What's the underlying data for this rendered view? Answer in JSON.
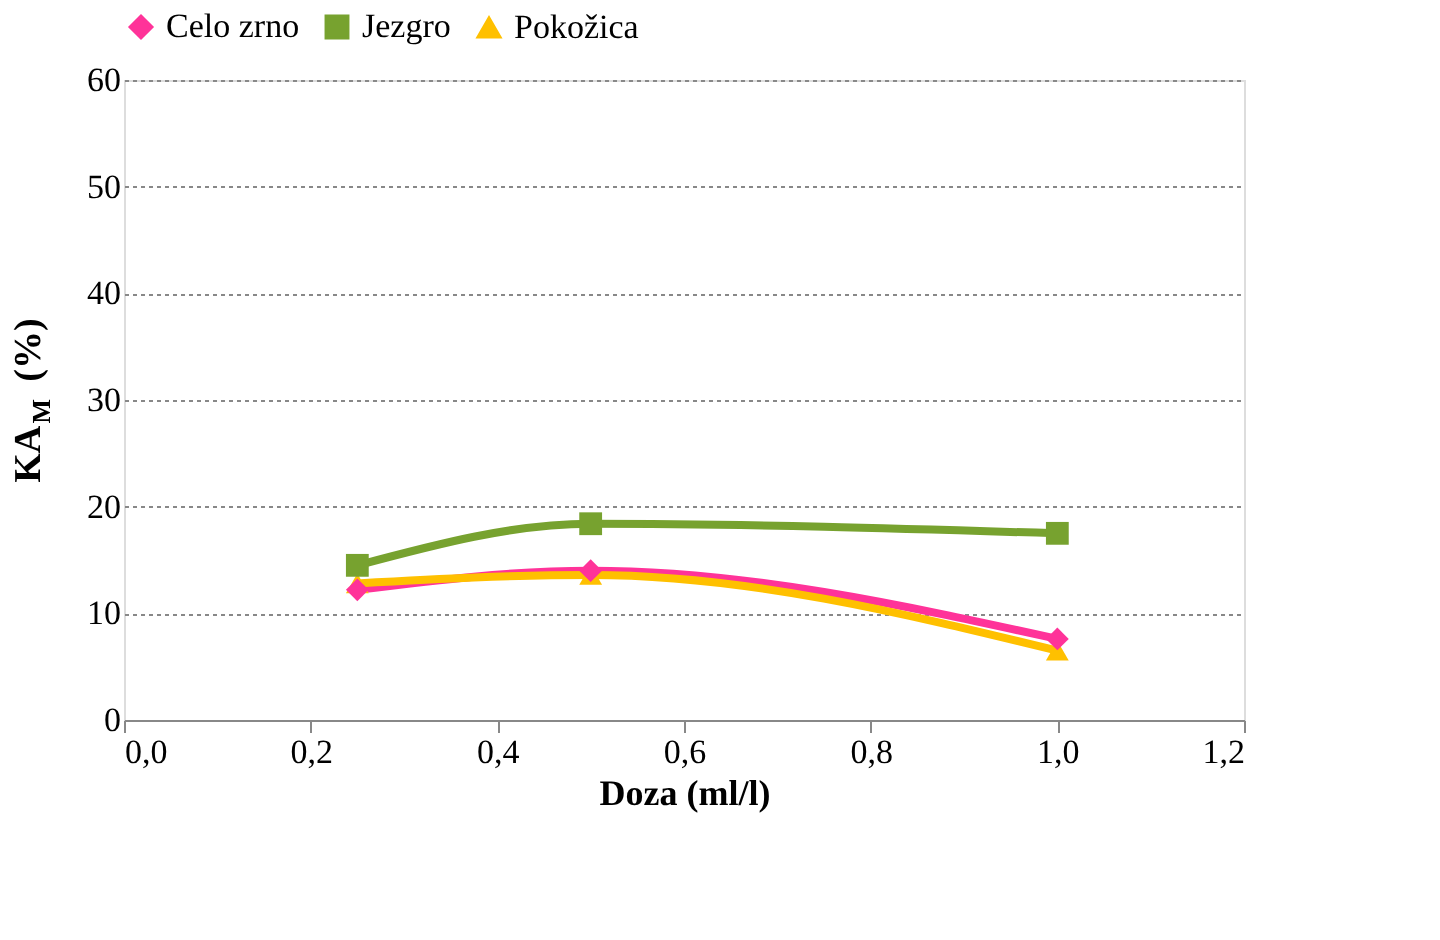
{
  "chart_data": {
    "type": "line",
    "xlabel": "Doza (ml/l)",
    "ylabel": "KA$_{M}$ (%)",
    "x": [
      0.25,
      0.5,
      1.0
    ],
    "series": [
      {
        "name": "Celo zrno",
        "color": "#ff3399",
        "marker": "diamond",
        "values": [
          12.2,
          14.0,
          7.6
        ]
      },
      {
        "name": "Jezgro",
        "color": "#77a22f",
        "marker": "square",
        "values": [
          14.5,
          18.4,
          17.5
        ]
      },
      {
        "name": "Pokožica",
        "color": "#ffc000",
        "marker": "triangle",
        "values": [
          12.8,
          13.6,
          6.5
        ]
      }
    ],
    "xlim": [
      0,
      1.2
    ],
    "xticks": [
      {
        "value": 0,
        "label": "0,0"
      },
      {
        "value": 0.2,
        "label": "0,2"
      },
      {
        "value": 0.4,
        "label": "0,4"
      },
      {
        "value": 0.6,
        "label": "0,6"
      },
      {
        "value": 0.8,
        "label": "0,8"
      },
      {
        "value": 1.0,
        "label": "1,0"
      },
      {
        "value": 1.2,
        "label": "1,2"
      }
    ],
    "ylim": [
      0,
      60
    ],
    "yticks": [
      0,
      10,
      20,
      30,
      40,
      50,
      60
    ],
    "grid": "y",
    "legend": "top"
  }
}
